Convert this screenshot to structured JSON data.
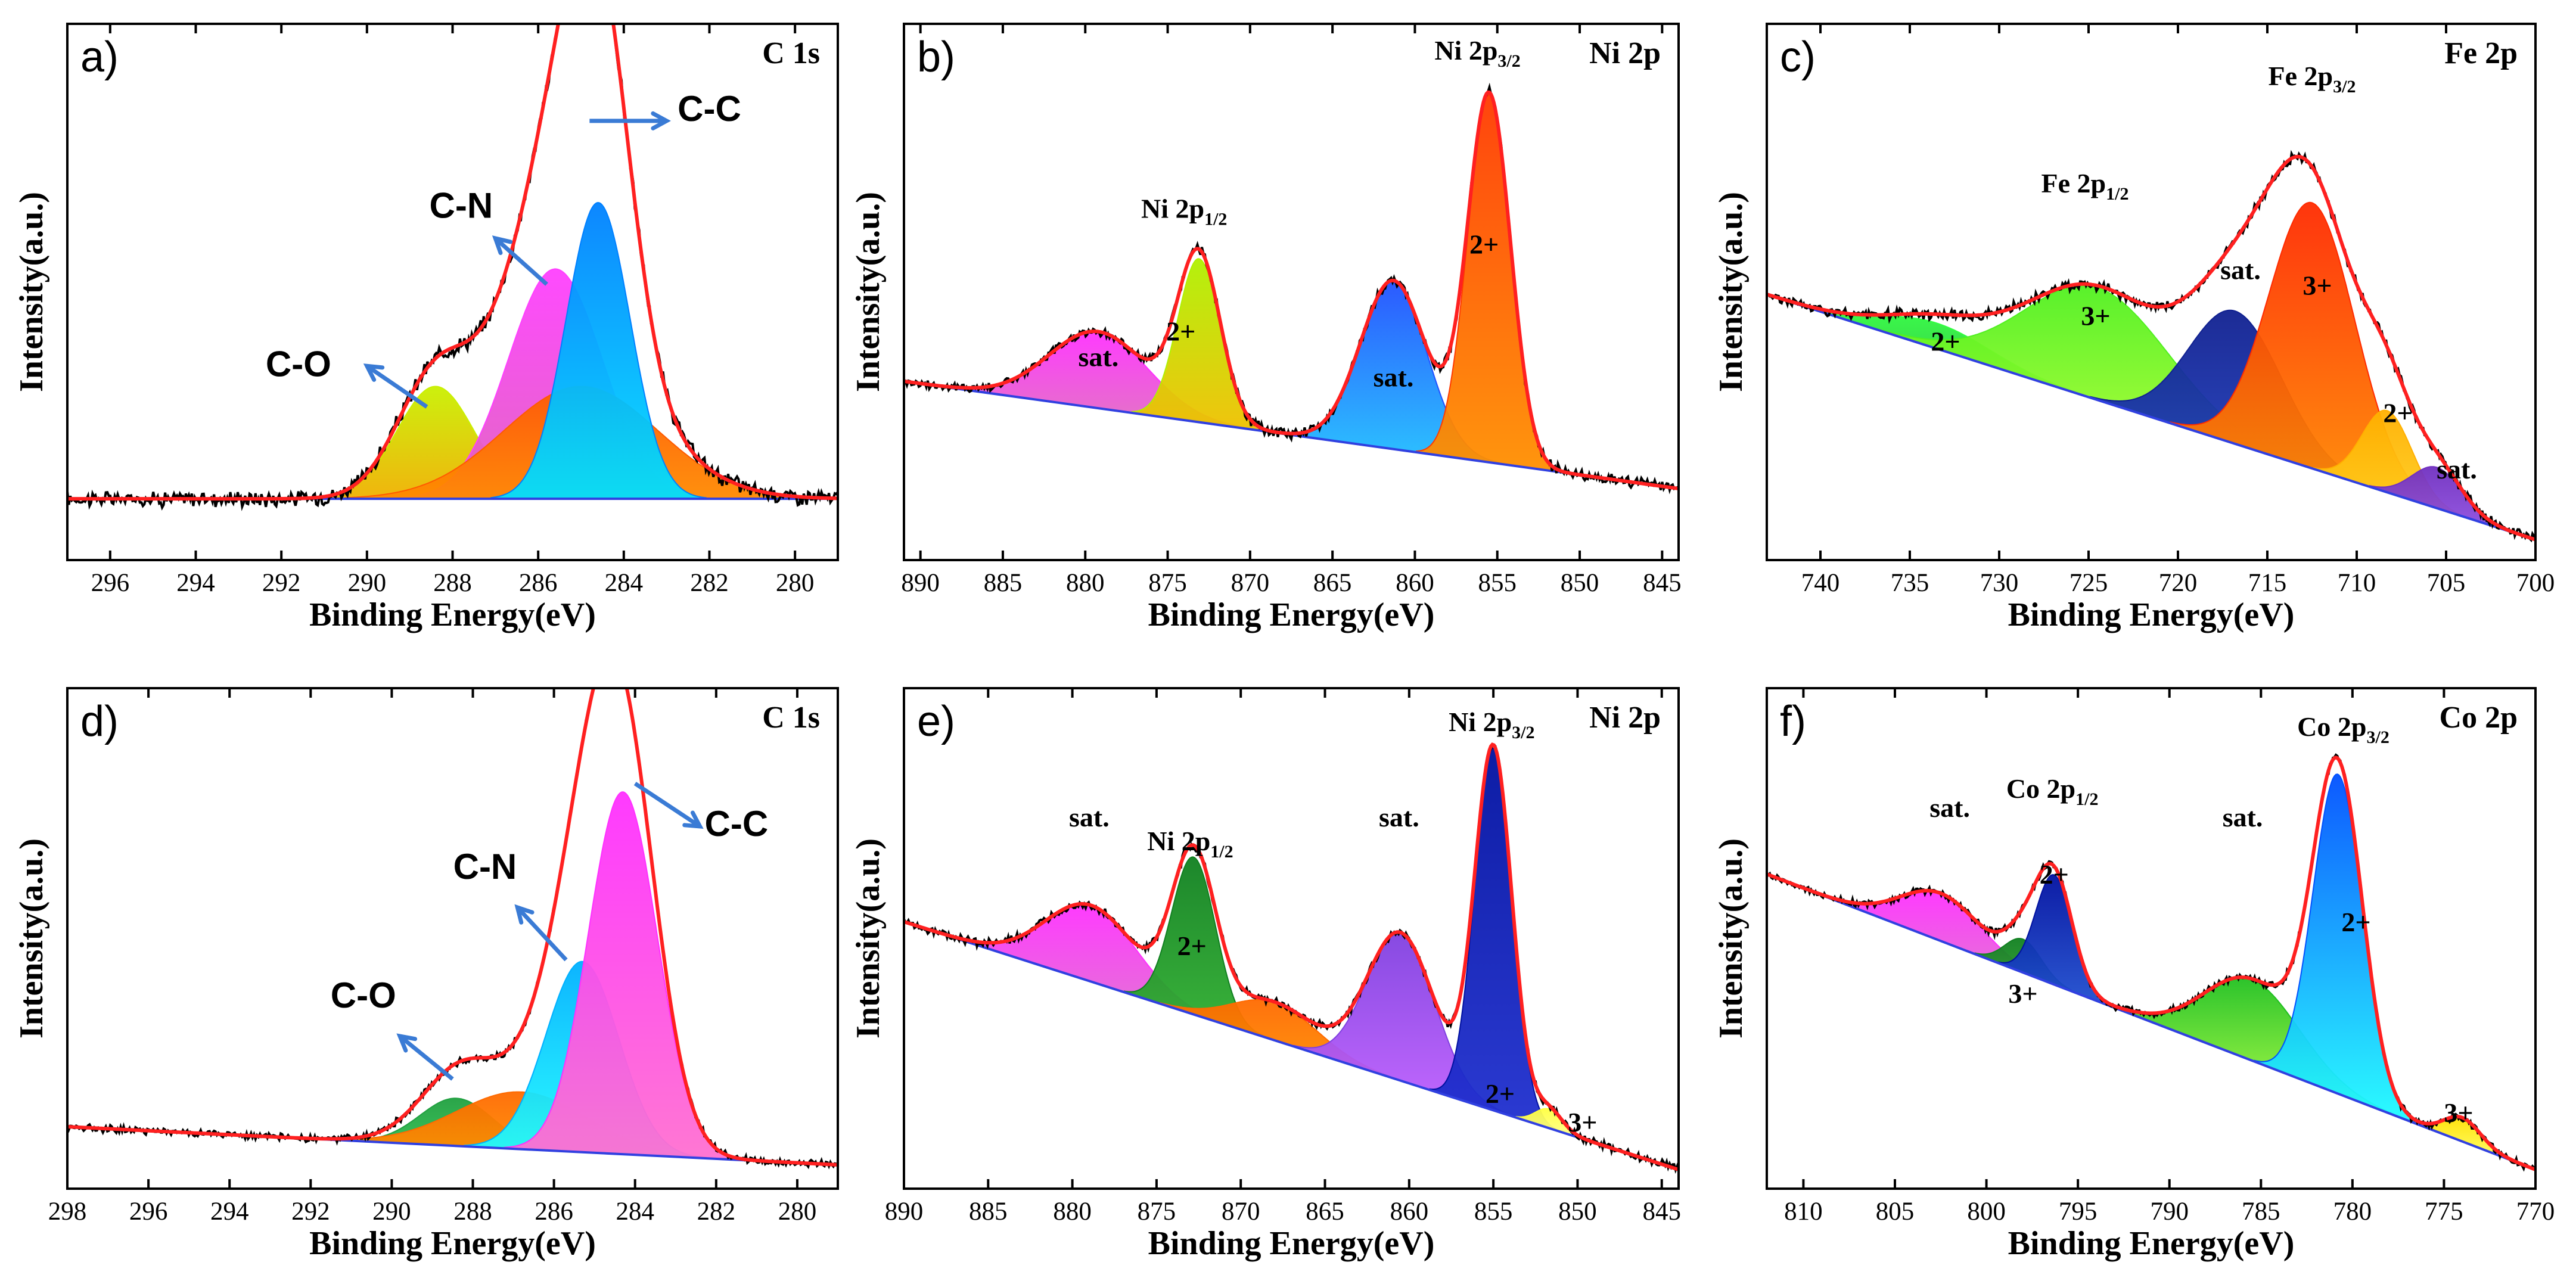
{
  "figure": {
    "xlabel": "Binding Energy(eV)",
    "ylabel": "Intensity(a.u.)"
  },
  "chart_data": [
    {
      "panel": "a)",
      "title": "C 1s",
      "type": "line",
      "xlabel": "Binding Energy(eV)",
      "ylabel": "Intensity(a.u.)",
      "xlim": [
        297,
        279
      ],
      "xticks": [
        296,
        294,
        292,
        290,
        288,
        286,
        284,
        282,
        280
      ],
      "baseline": [
        0.12,
        0.12
      ],
      "noise": 0.012,
      "ylim": [
        0,
        1.05
      ],
      "envelope": {
        "name": "Fitted envelope",
        "color": "#ff2020"
      },
      "components": [
        {
          "name": "C-O",
          "center": 288.4,
          "height": 0.22,
          "width": 0.9,
          "color_top": "#c9f000",
          "color_bottom": "#f0b000"
        },
        {
          "name": "C-N",
          "center": 285.6,
          "height": 0.45,
          "width": 1.1,
          "color_top": "#ff40ff",
          "color_bottom": "#e060c0"
        },
        {
          "name": "Shoulder",
          "center": 285.0,
          "height": 0.22,
          "width": 1.8,
          "color_top": "#ff5a00",
          "color_bottom": "#ff8a00"
        },
        {
          "name": "C-C",
          "center": 284.6,
          "height": 0.58,
          "width": 0.75,
          "color_top": "#0080ff",
          "color_bottom": "#00e0ff"
        }
      ],
      "annotations": [
        {
          "text": "C-O",
          "x": 291.6,
          "y": 0.36,
          "style": "big"
        },
        {
          "text": "C-N",
          "x": 287.8,
          "y": 0.67,
          "style": "big"
        },
        {
          "text": "C-C",
          "x": 282.0,
          "y": 0.86,
          "style": "big"
        }
      ],
      "arrows": [
        {
          "x1": 288.6,
          "y1": 0.3,
          "x2": 290.0,
          "y2": 0.38
        },
        {
          "x1": 285.8,
          "y1": 0.54,
          "x2": 287.0,
          "y2": 0.63
        },
        {
          "x1": 284.8,
          "y1": 0.86,
          "x2": 283.0,
          "y2": 0.86
        }
      ]
    },
    {
      "panel": "b)",
      "title": "Ni 2p",
      "type": "line",
      "xlabel": "Binding Energy(eV)",
      "ylabel": "Intensity(a.u.)",
      "xlim": [
        891,
        844
      ],
      "xticks": [
        890,
        885,
        880,
        875,
        870,
        865,
        860,
        855,
        850,
        845
      ],
      "baseline": [
        0.35,
        0.14
      ],
      "noise": 0.008,
      "ylim": [
        0,
        1.05
      ],
      "envelope": {
        "name": "Fitted envelope",
        "color": "#ff2020"
      },
      "components": [
        {
          "name": "sat.",
          "center": 879.2,
          "height": 0.15,
          "width": 3.0,
          "color_top": "#ff30ff",
          "color_bottom": "#e070c0"
        },
        {
          "name": "Ni 2p1/2 2+",
          "center": 873.1,
          "height": 0.32,
          "width": 1.3,
          "color_top": "#b0f000",
          "color_bottom": "#f0c000"
        },
        {
          "name": "sat.",
          "center": 861.3,
          "height": 0.33,
          "width": 2.0,
          "color_top": "#2050ff",
          "color_bottom": "#20c0ff"
        },
        {
          "name": "Ni 2p3/2 2+",
          "center": 855.5,
          "height": 0.72,
          "width": 1.3,
          "color_top": "#ff3a00",
          "color_bottom": "#ff9000"
        }
      ],
      "annotations": [
        {
          "text": "sat.",
          "x": 879.2,
          "y": 0.38,
          "style": "normal"
        },
        {
          "text": "Ni 2p",
          "sub": "1/2",
          "x": 874.0,
          "y": 0.67,
          "style": "normal"
        },
        {
          "text": "2+",
          "x": 874.2,
          "y": 0.43,
          "style": "normal"
        },
        {
          "text": "sat.",
          "x": 861.3,
          "y": 0.34,
          "style": "normal"
        },
        {
          "text": "Ni 2p",
          "sub": "3/2",
          "x": 856.2,
          "y": 0.98,
          "style": "normal"
        },
        {
          "text": "2+",
          "x": 855.8,
          "y": 0.6,
          "style": "normal"
        }
      ],
      "arrows": []
    },
    {
      "panel": "c)",
      "title": "Fe 2p",
      "type": "line",
      "xlabel": "Binding Energy(eV)",
      "ylabel": "Intensity(a.u.)",
      "xlim": [
        743,
        700
      ],
      "xticks": [
        740,
        735,
        730,
        725,
        720,
        715,
        710,
        705,
        700
      ],
      "baseline": [
        0.52,
        0.04
      ],
      "noise": 0.008,
      "ylim": [
        0,
        1.05
      ],
      "envelope": {
        "name": "Fitted envelope",
        "color": "#ff2020"
      },
      "components": [
        {
          "name": "2+",
          "center": 733.5,
          "height": 0.05,
          "width": 3.0,
          "color_top": "#30ff40",
          "color_bottom": "#30c040"
        },
        {
          "name": "3+",
          "center": 724.5,
          "height": 0.22,
          "width": 4.0,
          "color_top": "#50f020",
          "color_bottom": "#b0ff30"
        },
        {
          "name": "sat.",
          "center": 716.8,
          "height": 0.26,
          "width": 2.6,
          "color_top": "#102090",
          "color_bottom": "#2040c0"
        },
        {
          "name": "3+",
          "center": 712.5,
          "height": 0.52,
          "width": 2.4,
          "color_top": "#ff2a00",
          "color_bottom": "#ff9000"
        },
        {
          "name": "2+",
          "center": 708.3,
          "height": 0.16,
          "width": 1.4,
          "color_top": "#ffb000",
          "color_bottom": "#ffd020"
        },
        {
          "name": "sat.",
          "center": 705.5,
          "height": 0.08,
          "width": 1.4,
          "color_top": "#7030c0",
          "color_bottom": "#9050e0"
        }
      ],
      "annotations": [
        {
          "text": "Fe 2p",
          "sub": "1/2",
          "x": 725.2,
          "y": 0.72,
          "style": "normal"
        },
        {
          "text": "Fe 2p",
          "sub": "3/2",
          "x": 712.5,
          "y": 0.93,
          "style": "bold"
        },
        {
          "text": "2+",
          "x": 733.0,
          "y": 0.41,
          "style": "normal"
        },
        {
          "text": "3+",
          "x": 724.6,
          "y": 0.46,
          "style": "normal"
        },
        {
          "text": "sat.",
          "x": 716.5,
          "y": 0.55,
          "style": "normal"
        },
        {
          "text": "3+",
          "x": 712.2,
          "y": 0.52,
          "style": "normal"
        },
        {
          "text": "2+",
          "x": 707.7,
          "y": 0.27,
          "style": "normal"
        },
        {
          "text": "sat.",
          "x": 704.4,
          "y": 0.16,
          "style": "normal"
        }
      ],
      "arrows": []
    },
    {
      "panel": "d)",
      "title": "C 1s",
      "type": "line",
      "xlabel": "Binding Energy(eV)",
      "ylabel": "Intensity(a.u.)",
      "xlim": [
        298,
        279
      ],
      "xticks": [
        298,
        296,
        294,
        292,
        290,
        288,
        286,
        284,
        282,
        280
      ],
      "baseline": [
        0.13,
        0.05
      ],
      "noise": 0.006,
      "ylim": [
        0,
        1.05
      ],
      "envelope": {
        "name": "Fitted envelope",
        "color": "#ff2020"
      },
      "components": [
        {
          "name": "C-O",
          "center": 288.4,
          "height": 0.1,
          "width": 0.9,
          "color_top": "#20a040",
          "color_bottom": "#30c050"
        },
        {
          "name": "Shoulder",
          "center": 286.8,
          "height": 0.12,
          "width": 1.6,
          "color_top": "#ff6a00",
          "color_bottom": "#ff9000"
        },
        {
          "name": "C-N",
          "center": 285.3,
          "height": 0.4,
          "width": 0.9,
          "color_top": "#00b0ff",
          "color_bottom": "#20ffff"
        },
        {
          "name": "C-C",
          "center": 284.3,
          "height": 0.76,
          "width": 0.85,
          "color_top": "#ff30ff",
          "color_bottom": "#ff70d0"
        }
      ],
      "annotations": [
        {
          "text": "C-O",
          "x": 290.7,
          "y": 0.38,
          "style": "big"
        },
        {
          "text": "C-N",
          "x": 287.7,
          "y": 0.65,
          "style": "big"
        },
        {
          "text": "C-C",
          "x": 281.5,
          "y": 0.74,
          "style": "big"
        }
      ],
      "arrows": [
        {
          "x1": 288.5,
          "y1": 0.23,
          "x2": 289.8,
          "y2": 0.32
        },
        {
          "x1": 285.7,
          "y1": 0.48,
          "x2": 286.9,
          "y2": 0.59
        },
        {
          "x1": 284.0,
          "y1": 0.85,
          "x2": 282.4,
          "y2": 0.76
        }
      ]
    },
    {
      "panel": "e)",
      "title": "Ni 2p",
      "type": "line",
      "xlabel": "Binding Energy(eV)",
      "ylabel": "Intensity(a.u.)",
      "xlim": [
        890,
        844
      ],
      "xticks": [
        890,
        885,
        880,
        875,
        870,
        865,
        860,
        855,
        850,
        845
      ],
      "baseline": [
        0.56,
        0.04
      ],
      "noise": 0.007,
      "ylim": [
        0,
        1.05
      ],
      "envelope": {
        "name": "Fitted envelope",
        "color": "#ff2020"
      },
      "components": [
        {
          "name": "sat.",
          "center": 878.9,
          "height": 0.16,
          "width": 2.7,
          "color_top": "#ff30ff",
          "color_bottom": "#e070d0"
        },
        {
          "name": "Ni 2p1/2 2+",
          "center": 872.8,
          "height": 0.33,
          "width": 1.3,
          "color_top": "#108020",
          "color_bottom": "#30b030"
        },
        {
          "name": "Shoulder",
          "center": 868.0,
          "height": 0.08,
          "width": 2.5,
          "color_top": "#ff6a00",
          "color_bottom": "#ff9000"
        },
        {
          "name": "sat.",
          "center": 860.5,
          "height": 0.31,
          "width": 2.0,
          "color_top": "#8040e0",
          "color_bottom": "#c060ff"
        },
        {
          "name": "Ni 2p3/2 2+",
          "center": 855.0,
          "height": 0.76,
          "width": 1.1,
          "color_top": "#0010a0",
          "color_bottom": "#2030d0"
        },
        {
          "name": "3+",
          "center": 851.7,
          "height": 0.04,
          "width": 0.8,
          "color_top": "#ffff40",
          "color_bottom": "#ffff90"
        }
      ],
      "annotations": [
        {
          "text": "sat.",
          "x": 879.0,
          "y": 0.76,
          "style": "normal"
        },
        {
          "text": "Ni 2p",
          "sub": "1/2",
          "x": 873.0,
          "y": 0.71,
          "style": "normal"
        },
        {
          "text": "2+",
          "x": 872.9,
          "y": 0.49,
          "style": "normal"
        },
        {
          "text": "sat.",
          "x": 860.6,
          "y": 0.76,
          "style": "normal"
        },
        {
          "text": "Ni 2p",
          "sub": "3/2",
          "x": 855.1,
          "y": 0.96,
          "style": "normal"
        },
        {
          "text": "2+",
          "x": 854.6,
          "y": 0.18,
          "style": "normal"
        },
        {
          "text": "3+",
          "x": 849.7,
          "y": 0.12,
          "style": "normal"
        }
      ],
      "arrows": []
    },
    {
      "panel": "f)",
      "title": "Co 2p",
      "type": "line",
      "xlabel": "Binding Energy(eV)",
      "ylabel": "Intensity(a.u.)",
      "xlim": [
        812,
        770
      ],
      "xticks": [
        810,
        805,
        800,
        795,
        790,
        785,
        780,
        775,
        770
      ],
      "baseline": [
        0.66,
        0.04
      ],
      "noise": 0.006,
      "ylim": [
        0,
        1.05
      ],
      "envelope": {
        "name": "Fitted envelope",
        "color": "#ff2020"
      },
      "components": [
        {
          "name": "sat.",
          "center": 802.5,
          "height": 0.1,
          "width": 2.2,
          "color_top": "#ff30ff",
          "color_bottom": "#e070d0"
        },
        {
          "name": "Co 2p1/2 3+",
          "center": 798.0,
          "height": 0.07,
          "width": 1.0,
          "color_top": "#108020",
          "color_bottom": "#30a030"
        },
        {
          "name": "Co 2p1/2 2+",
          "center": 796.3,
          "height": 0.23,
          "width": 1.0,
          "color_top": "#0010a0",
          "color_bottom": "#2050d0"
        },
        {
          "name": "sat.",
          "center": 785.5,
          "height": 0.17,
          "width": 2.6,
          "color_top": "#20c020",
          "color_bottom": "#b0ff40"
        },
        {
          "name": "Co 2p3/2 2+",
          "center": 780.8,
          "height": 0.67,
          "width": 1.35,
          "color_top": "#0050ff",
          "color_bottom": "#20ffff"
        },
        {
          "name": "3+",
          "center": 774.0,
          "height": 0.05,
          "width": 1.0,
          "color_top": "#ffe000",
          "color_bottom": "#ffff60"
        }
      ],
      "annotations": [
        {
          "text": "sat.",
          "x": 802.0,
          "y": 0.78,
          "style": "normal"
        },
        {
          "text": "Co 2p",
          "sub": "1/2",
          "x": 796.4,
          "y": 0.82,
          "style": "normal"
        },
        {
          "text": "2+",
          "x": 796.3,
          "y": 0.64,
          "style": "normal"
        },
        {
          "text": "3+",
          "x": 798.0,
          "y": 0.39,
          "style": "normal"
        },
        {
          "text": "sat.",
          "x": 786.0,
          "y": 0.76,
          "style": "normal"
        },
        {
          "text": "Co 2p",
          "sub": "3/2",
          "x": 780.5,
          "y": 0.95,
          "style": "normal"
        },
        {
          "text": "2+",
          "x": 779.8,
          "y": 0.54,
          "style": "normal"
        },
        {
          "text": "3+",
          "x": 774.2,
          "y": 0.14,
          "style": "normal"
        }
      ],
      "arrows": []
    }
  ]
}
